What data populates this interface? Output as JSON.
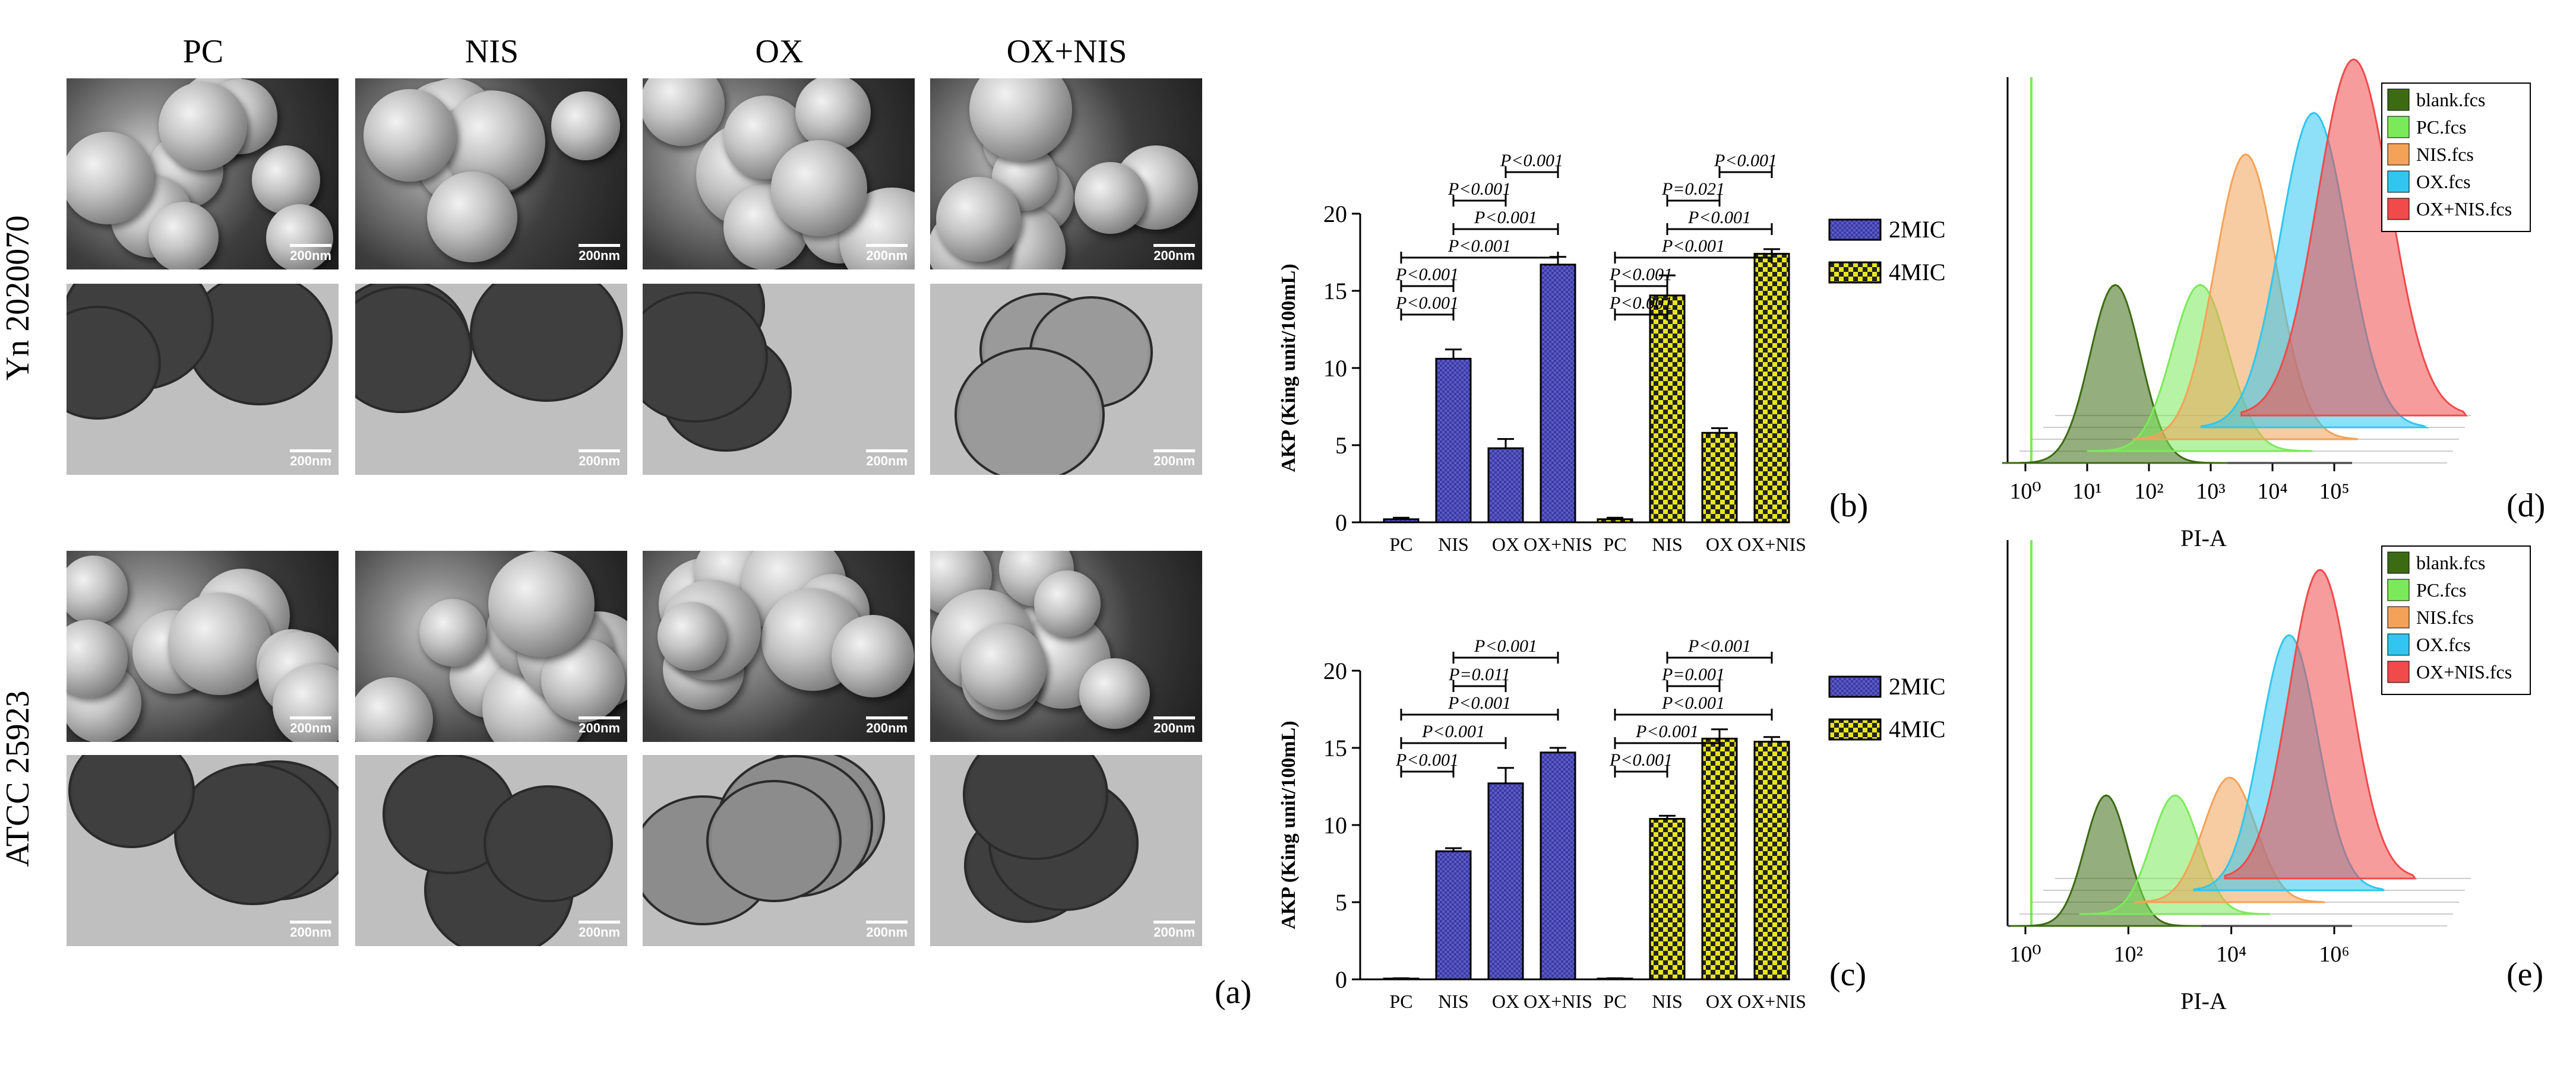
{
  "figure": {
    "columns": [
      "PC",
      "NIS",
      "OX",
      "OX+NIS"
    ],
    "rows": [
      "Yn 2020070",
      "ATCC 25923"
    ],
    "scale_bar": "200nm",
    "panel_labels": [
      "(a)",
      "(b)",
      "(c)",
      "(d)",
      "(e)"
    ]
  },
  "chart_data": [
    {
      "type": "bar",
      "panel": "(b)",
      "ylabel": "AKP (King unit/100mL)",
      "ylim": [
        0,
        20
      ],
      "yticks": [
        "0",
        "5",
        "10",
        "15",
        "20"
      ],
      "categories": [
        "PC",
        "NIS",
        "OX",
        "OX+NIS"
      ],
      "series": [
        {
          "name": "2MIC",
          "values": [
            0.2,
            10.6,
            4.8,
            16.7
          ],
          "errors": [
            0.1,
            0.6,
            0.6,
            0.5
          ],
          "color": "#3b3b9e"
        },
        {
          "name": "4MIC",
          "values": [
            0.2,
            14.7,
            5.8,
            17.4
          ],
          "errors": [
            0.1,
            1.3,
            0.3,
            0.3
          ],
          "color": "#e8e61c"
        }
      ],
      "significance": [
        [
          "P<0.001",
          "P<0.001",
          "P<0.001",
          "P<0.001",
          "P<0.001",
          "P<0.001"
        ],
        [
          "P<0.001",
          "P<0.001",
          "P<0.001",
          "P<0.001",
          "P=0.021",
          "P<0.001"
        ]
      ]
    },
    {
      "type": "bar",
      "panel": "(c)",
      "ylabel": "AKP (King unit/100mL)",
      "ylim": [
        0,
        20
      ],
      "yticks": [
        "0",
        "5",
        "10",
        "15",
        "20"
      ],
      "categories": [
        "PC",
        "NIS",
        "OX",
        "OX+NIS"
      ],
      "series": [
        {
          "name": "2MIC",
          "values": [
            0.05,
            8.3,
            12.7,
            14.7
          ],
          "errors": [
            0.02,
            0.2,
            1.0,
            0.3
          ],
          "color": "#3b3b9e"
        },
        {
          "name": "4MIC",
          "values": [
            0.05,
            10.4,
            15.6,
            15.4
          ],
          "errors": [
            0.02,
            0.2,
            0.6,
            0.3
          ],
          "color": "#e8e61c"
        }
      ],
      "significance": [
        [
          "P<0.001",
          "P<0.001",
          "P<0.001",
          "P=0.011",
          "P<0.001"
        ],
        [
          "P<0.001",
          "P<0.001",
          "P<0.001",
          "P=0.001",
          "P<0.001"
        ]
      ]
    },
    {
      "type": "area",
      "panel": "(d)",
      "xlabel": "PI-A",
      "xticks": [
        "10⁰",
        "10¹",
        "10²",
        "10³",
        "10⁴",
        "10⁵"
      ],
      "legend": [
        {
          "name": "blank.fcs",
          "color": "#3d6b14"
        },
        {
          "name": "PC.fcs",
          "color": "#7bea5a"
        },
        {
          "name": "NIS.fcs",
          "color": "#f3a258"
        },
        {
          "name": "OX.fcs",
          "color": "#30c6f0"
        },
        {
          "name": "OX+NIS.fcs",
          "color": "#f04a4a"
        }
      ],
      "peaks_log10": [
        1.6,
        2.9,
        3.5,
        4.5,
        5.0
      ]
    },
    {
      "type": "area",
      "panel": "(e)",
      "xlabel": "PI-A",
      "xticks": [
        "10⁰",
        "10²",
        "10⁴",
        "10⁶"
      ],
      "legend": [
        {
          "name": "blank.fcs",
          "color": "#3d6b14"
        },
        {
          "name": "PC.fcs",
          "color": "#7bea5a"
        },
        {
          "name": "NIS.fcs",
          "color": "#f3a258"
        },
        {
          "name": "OX.fcs",
          "color": "#30c6f0"
        },
        {
          "name": "OX+NIS.fcs",
          "color": "#f04a4a"
        }
      ],
      "peaks_log10": [
        1.7,
        2.9,
        3.8,
        4.8,
        5.2
      ]
    }
  ]
}
